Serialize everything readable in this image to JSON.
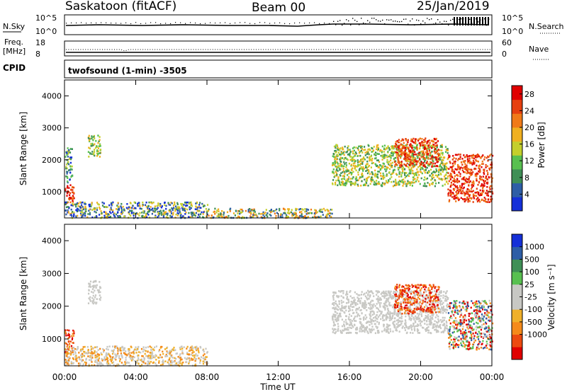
{
  "header": {
    "site": "Saskatoon (fitACF)",
    "beam": "Beam 00",
    "date": "25/Jan/2019"
  },
  "top_panels": {
    "noise": {
      "left_label": "N.Sky",
      "right_label": "N.Search",
      "left_ticks": [
        "10^5",
        "10^0"
      ],
      "right_ticks": [
        "10^5",
        "10^0"
      ]
    },
    "freq": {
      "left_label_1": "Freq.",
      "left_label_2": "[MHz]",
      "right_label": "Nave",
      "left_ticks": [
        "18",
        "8"
      ],
      "right_ticks": [
        "60",
        "0"
      ]
    },
    "cpid": {
      "label": "CPID",
      "program": "twofsound (1-min) -3505"
    }
  },
  "colors": {
    "power": [
      "#1530d8",
      "#2e5ea6",
      "#3f8f56",
      "#58c050",
      "#c4cf2c",
      "#f0b020",
      "#f07a18",
      "#e64010",
      "#e00000"
    ],
    "velocity": [
      "#e00000",
      "#ec4a10",
      "#f58a1a",
      "#f0b02a",
      "#c8c8c4",
      "#c8c8c4",
      "#58c050",
      "#3f8f56",
      "#2e5ea6",
      "#1530d8"
    ]
  },
  "chart_data": [
    {
      "type": "heatmap",
      "name": "power",
      "ylabel": "Slant Range [km]",
      "yticks": [
        "1000",
        "2000",
        "3000",
        "4000"
      ],
      "xticks": [
        "00:00",
        "04:00",
        "08:00",
        "12:00",
        "16:00",
        "20:00",
        "00:00"
      ],
      "ylim": [
        180,
        4500
      ],
      "xlim_hours": [
        0,
        24
      ],
      "colorbar": {
        "label": "Power [dB]",
        "ticks": [
          "4",
          "8",
          "12",
          "16",
          "20",
          "24",
          "28"
        ],
        "range": [
          0,
          30
        ]
      },
      "scatter_regions": [
        {
          "t": [
            0.0,
            0.5
          ],
          "r": [
            600,
            1300
          ],
          "level": "high"
        },
        {
          "t": [
            0.0,
            0.4
          ],
          "r": [
            1300,
            2400
          ],
          "level": "mixed"
        },
        {
          "t": [
            1.3,
            2.0
          ],
          "r": [
            2100,
            2800
          ],
          "level": "mid"
        },
        {
          "t": [
            0.0,
            8.0
          ],
          "r": [
            200,
            700
          ],
          "level": "low"
        },
        {
          "t": [
            8.0,
            15.0
          ],
          "r": [
            200,
            500
          ],
          "level": "low-mid"
        },
        {
          "t": [
            15.0,
            21.5
          ],
          "r": [
            1200,
            2500
          ],
          "level": "mid"
        },
        {
          "t": [
            18.5,
            21.0
          ],
          "r": [
            1800,
            2700
          ],
          "level": "high"
        },
        {
          "t": [
            21.5,
            24.0
          ],
          "r": [
            700,
            2200
          ],
          "level": "high"
        }
      ]
    },
    {
      "type": "heatmap",
      "name": "velocity",
      "ylabel": "Slant Range [km]",
      "xlabel": "Time UT",
      "yticks": [
        "1000",
        "2000",
        "3000",
        "4000"
      ],
      "xticks": [
        "00:00",
        "04:00",
        "08:00",
        "12:00",
        "16:00",
        "20:00",
        "00:00"
      ],
      "ylim": [
        180,
        4500
      ],
      "xlim_hours": [
        0,
        24
      ],
      "colorbar": {
        "label": "Velocity [m s⁻¹]",
        "ticks": [
          "1000",
          "500",
          "100",
          "25",
          "-25",
          "-100",
          "-500",
          "-1000"
        ],
        "range": [
          -1000,
          1000
        ]
      },
      "scatter_regions": [
        {
          "t": [
            0.0,
            0.5
          ],
          "r": [
            600,
            1300
          ],
          "level": "negative"
        },
        {
          "t": [
            1.3,
            2.0
          ],
          "r": [
            2100,
            2800
          ],
          "level": "near-zero"
        },
        {
          "t": [
            0.0,
            8.0
          ],
          "r": [
            200,
            800
          ],
          "level": "negative-small"
        },
        {
          "t": [
            15.0,
            21.5
          ],
          "r": [
            1200,
            2500
          ],
          "level": "near-zero"
        },
        {
          "t": [
            18.5,
            21.0
          ],
          "r": [
            1800,
            2700
          ],
          "level": "negative"
        },
        {
          "t": [
            21.5,
            24.0
          ],
          "r": [
            700,
            2200
          ],
          "level": "mixed"
        }
      ]
    }
  ]
}
